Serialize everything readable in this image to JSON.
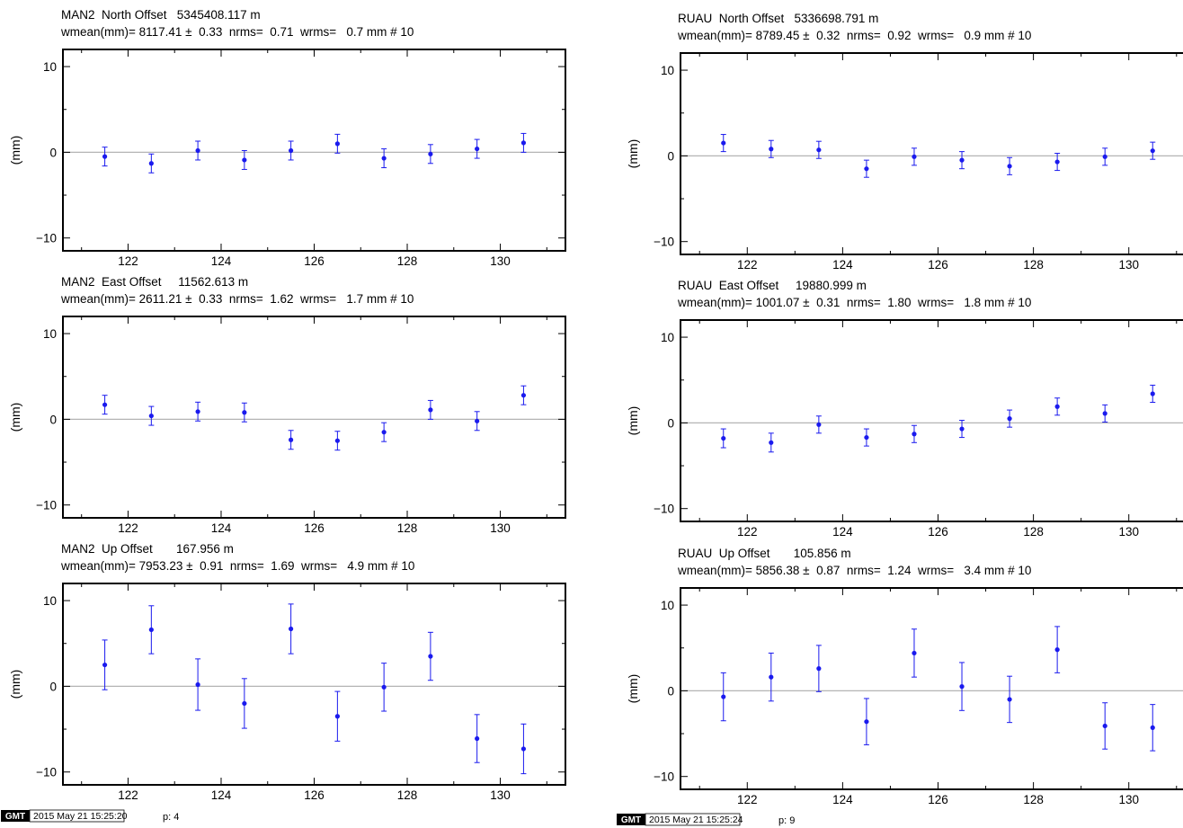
{
  "colors": {
    "series": "#1a1aee",
    "zero_line": "#b4b4b4",
    "frame": "#000000"
  },
  "chart_data": [
    {
      "type": "scatter",
      "site": "MAN2",
      "component": "North",
      "title": "MAN2  North Offset   5345408.117 m",
      "subtitle": "wmean(mm)= 8117.41 ±  0.33  nrms=  0.71  wrms=   0.7 mm # 10",
      "ylabel": "(mm)",
      "xlim": [
        120.6,
        131.4
      ],
      "ylim": [
        -11.5,
        12
      ],
      "xticks": [
        122,
        124,
        126,
        128,
        130
      ],
      "yticks": [
        -10,
        0,
        10
      ],
      "x": [
        121.5,
        122.5,
        123.5,
        124.5,
        125.5,
        126.5,
        127.5,
        128.5,
        129.5,
        130.5
      ],
      "y": [
        -0.5,
        -1.3,
        0.2,
        -0.9,
        0.2,
        1.0,
        -0.7,
        -0.2,
        0.4,
        1.1
      ],
      "err": [
        1.1,
        1.1,
        1.1,
        1.1,
        1.1,
        1.1,
        1.1,
        1.1,
        1.1,
        1.1
      ]
    },
    {
      "type": "scatter",
      "site": "MAN2",
      "component": "East",
      "title": "MAN2  East Offset     11562.613 m",
      "subtitle": "wmean(mm)= 2611.21 ±  0.33  nrms=  1.62  wrms=   1.7 mm # 10",
      "ylabel": "(mm)",
      "xlim": [
        120.6,
        131.4
      ],
      "ylim": [
        -11.5,
        12
      ],
      "xticks": [
        122,
        124,
        126,
        128,
        130
      ],
      "yticks": [
        -10,
        0,
        10
      ],
      "x": [
        121.5,
        122.5,
        123.5,
        124.5,
        125.5,
        126.5,
        127.5,
        128.5,
        129.5,
        130.5
      ],
      "y": [
        1.7,
        0.4,
        0.9,
        0.8,
        -2.4,
        -2.5,
        -1.5,
        1.1,
        -0.2,
        2.8
      ],
      "err": [
        1.1,
        1.1,
        1.1,
        1.1,
        1.1,
        1.1,
        1.1,
        1.1,
        1.1,
        1.1
      ]
    },
    {
      "type": "scatter",
      "site": "MAN2",
      "component": "Up",
      "title": "MAN2  Up Offset       167.956 m",
      "subtitle": "wmean(mm)= 7953.23 ±  0.91  nrms=  1.69  wrms=   4.9 mm # 10",
      "ylabel": "(mm)",
      "xlim": [
        120.6,
        131.4
      ],
      "ylim": [
        -11.5,
        12
      ],
      "xticks": [
        122,
        124,
        126,
        128,
        130
      ],
      "yticks": [
        -10,
        0,
        10
      ],
      "x": [
        121.5,
        122.5,
        123.5,
        124.5,
        125.5,
        126.5,
        127.5,
        128.5,
        129.5,
        130.5
      ],
      "y": [
        2.5,
        6.6,
        0.2,
        -2.0,
        6.7,
        -3.5,
        -0.1,
        3.5,
        -6.1,
        -7.3
      ],
      "err": [
        2.9,
        2.8,
        3.0,
        2.9,
        2.9,
        2.9,
        2.8,
        2.8,
        2.8,
        2.9
      ]
    },
    {
      "type": "scatter",
      "site": "RUAU",
      "component": "North",
      "title": "RUAU  North Offset   5336698.791 m",
      "subtitle": "wmean(mm)= 8789.45 ±  0.32  nrms=  0.92  wrms=   0.9 mm # 10",
      "ylabel": "(mm)",
      "xlim": [
        120.6,
        131.4
      ],
      "ylim": [
        -11.5,
        12
      ],
      "xticks": [
        122,
        124,
        126,
        128,
        130
      ],
      "yticks": [
        -10,
        0,
        10
      ],
      "x": [
        121.5,
        122.5,
        123.5,
        124.5,
        125.5,
        126.5,
        127.5,
        128.5,
        129.5,
        130.5
      ],
      "y": [
        1.5,
        0.8,
        0.7,
        -1.5,
        -0.1,
        -0.5,
        -1.2,
        -0.7,
        -0.1,
        0.6
      ],
      "err": [
        1.0,
        1.0,
        1.0,
        1.0,
        1.0,
        1.0,
        1.0,
        1.0,
        1.0,
        1.0
      ]
    },
    {
      "type": "scatter",
      "site": "RUAU",
      "component": "East",
      "title": "RUAU  East Offset     19880.999 m",
      "subtitle": "wmean(mm)= 1001.07 ±  0.31  nrms=  1.80  wrms=   1.8 mm # 10",
      "ylabel": "(mm)",
      "xlim": [
        120.6,
        131.4
      ],
      "ylim": [
        -11.5,
        12
      ],
      "xticks": [
        122,
        124,
        126,
        128,
        130
      ],
      "yticks": [
        -10,
        0,
        10
      ],
      "x": [
        121.5,
        122.5,
        123.5,
        124.5,
        125.5,
        126.5,
        127.5,
        128.5,
        129.5,
        130.5
      ],
      "y": [
        -1.8,
        -2.3,
        -0.2,
        -1.7,
        -1.3,
        -0.7,
        0.5,
        1.9,
        1.1,
        3.4
      ],
      "err": [
        1.1,
        1.1,
        1.0,
        1.0,
        1.0,
        1.0,
        1.0,
        1.0,
        1.0,
        1.0
      ]
    },
    {
      "type": "scatter",
      "site": "RUAU",
      "component": "Up",
      "title": "RUAU  Up Offset       105.856 m",
      "subtitle": "wmean(mm)= 5856.38 ±  0.87  nrms=  1.24  wrms=   3.4 mm # 10",
      "ylabel": "(mm)",
      "xlim": [
        120.6,
        131.4
      ],
      "ylim": [
        -11.5,
        12
      ],
      "xticks": [
        122,
        124,
        126,
        128,
        130
      ],
      "yticks": [
        -10,
        0,
        10
      ],
      "x": [
        121.5,
        122.5,
        123.5,
        124.5,
        125.5,
        126.5,
        127.5,
        128.5,
        129.5,
        130.5
      ],
      "y": [
        -0.7,
        1.6,
        2.6,
        -3.6,
        4.4,
        0.5,
        -1.0,
        4.8,
        -4.1,
        -4.3
      ],
      "err": [
        2.8,
        2.8,
        2.7,
        2.7,
        2.8,
        2.8,
        2.7,
        2.7,
        2.7,
        2.7
      ]
    }
  ],
  "footers": [
    {
      "logo": "GMT",
      "timestamp": "2015 May 21 15:25:20",
      "page": "p: 4"
    },
    {
      "logo": "GMT",
      "timestamp": "2015 May 21 15:25:24",
      "page": "p: 9"
    }
  ]
}
